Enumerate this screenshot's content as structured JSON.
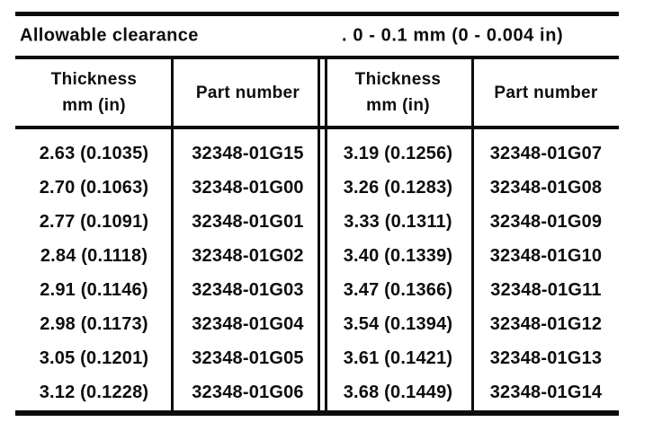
{
  "document": {
    "ink_color": "#0d0d0d",
    "paper_color": "#ffffff",
    "clearance": {
      "label": "Allowable clearance",
      "value": ". 0 - 0.1 mm (0 - 0.004 in)"
    },
    "headers": {
      "thickness_title": "Thickness",
      "thickness_unit": "mm (in)",
      "part_number": "Part number"
    },
    "rows": [
      {
        "left_thickness": "2.63 (0.1035)",
        "left_part": "32348-01G15",
        "right_thickness": "3.19 (0.1256)",
        "right_part": "32348-01G07"
      },
      {
        "left_thickness": "2.70 (0.1063)",
        "left_part": "32348-01G00",
        "right_thickness": "3.26 (0.1283)",
        "right_part": "32348-01G08"
      },
      {
        "left_thickness": "2.77 (0.1091)",
        "left_part": "32348-01G01",
        "right_thickness": "3.33 (0.1311)",
        "right_part": "32348-01G09"
      },
      {
        "left_thickness": "2.84 (0.1118)",
        "left_part": "32348-01G02",
        "right_thickness": "3.40 (0.1339)",
        "right_part": "32348-01G10"
      },
      {
        "left_thickness": "2.91 (0.1146)",
        "left_part": "32348-01G03",
        "right_thickness": "3.47 (0.1366)",
        "right_part": "32348-01G11"
      },
      {
        "left_thickness": "2.98 (0.1173)",
        "left_part": "32348-01G04",
        "right_thickness": "3.54 (0.1394)",
        "right_part": "32348-01G12"
      },
      {
        "left_thickness": "3.05 (0.1201)",
        "left_part": "32348-01G05",
        "right_thickness": "3.61 (0.1421)",
        "right_part": "32348-01G13"
      },
      {
        "left_thickness": "3.12 (0.1228)",
        "left_part": "32348-01G06",
        "right_thickness": "3.68 (0.1449)",
        "right_part": "32348-01G14"
      }
    ]
  }
}
